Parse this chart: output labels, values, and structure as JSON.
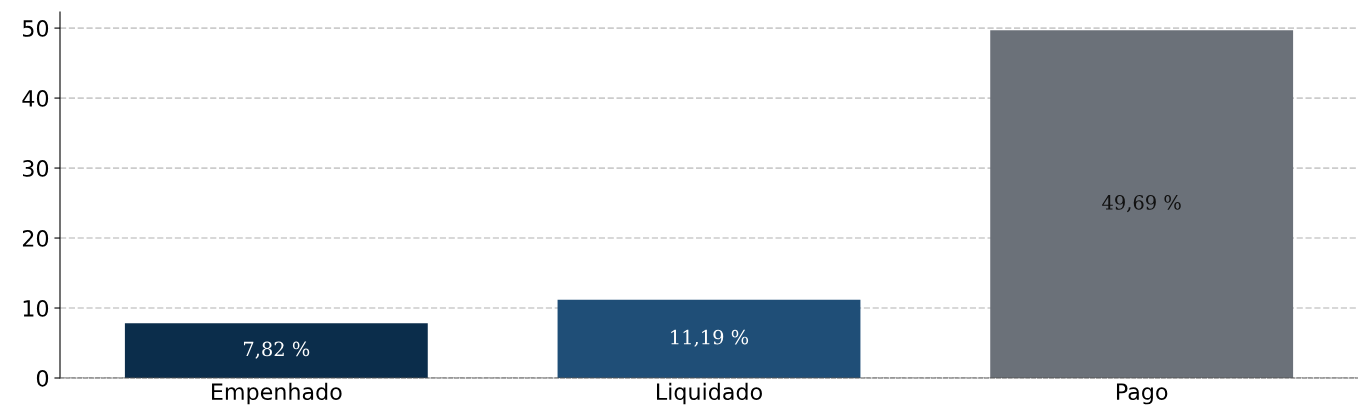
{
  "chart_data": {
    "type": "bar",
    "categories": [
      "Empenhado",
      "Liquidado",
      "Pago"
    ],
    "values": [
      7.82,
      11.19,
      49.69
    ],
    "colors": [
      "#0b2d4b",
      "#1f4e77",
      "#6b7179"
    ],
    "value_labels": [
      "7,82 %",
      "11,19 %",
      "49,69 %"
    ],
    "ylim": [
      0,
      52.3
    ],
    "yticks": [
      0,
      10,
      20,
      30,
      40,
      50
    ],
    "grid": "y",
    "legend": false
  }
}
